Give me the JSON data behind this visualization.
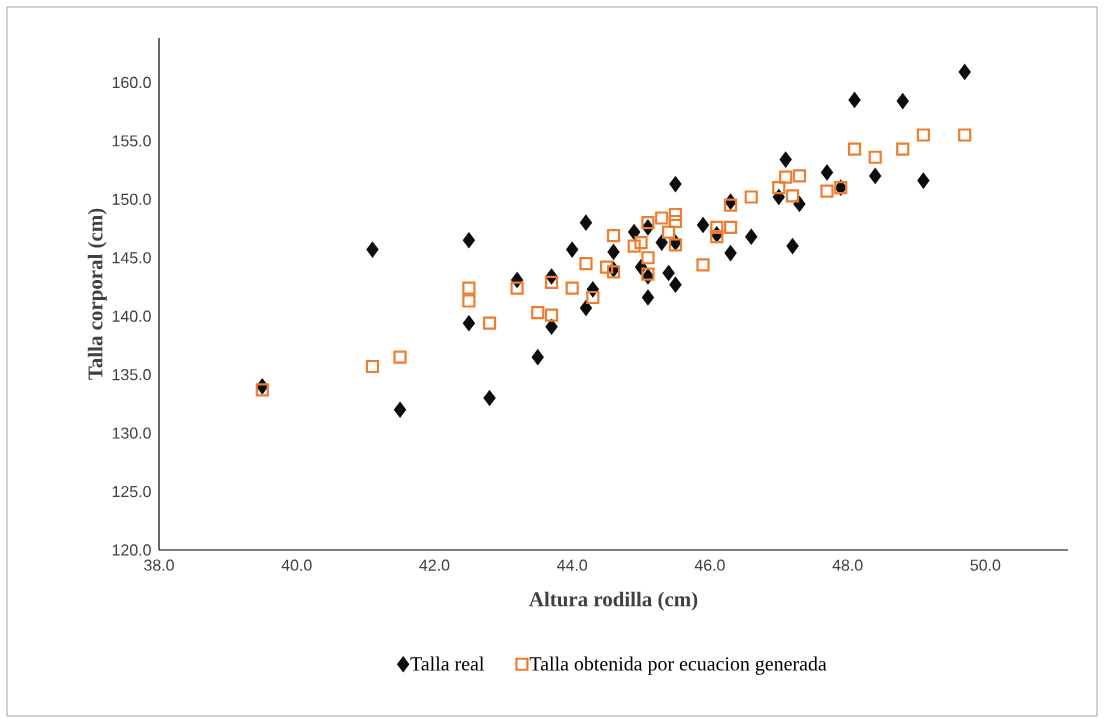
{
  "chart_data": {
    "type": "scatter",
    "xlabel": "Altura rodilla (cm)",
    "ylabel": "Talla corporal (cm)",
    "xlim": [
      38,
      51.2
    ],
    "ylim": [
      120,
      163.8
    ],
    "xticks": [
      {
        "value": 38,
        "label": "38.0"
      },
      {
        "value": 40,
        "label": "40.0"
      },
      {
        "value": 42,
        "label": "42.0"
      },
      {
        "value": 44,
        "label": "44.0"
      },
      {
        "value": 46,
        "label": "46.0"
      },
      {
        "value": 48,
        "label": "48.0"
      },
      {
        "value": 50,
        "label": "50.0"
      }
    ],
    "yticks": [
      {
        "value": 120,
        "label": "120.0"
      },
      {
        "value": 125,
        "label": "125.0"
      },
      {
        "value": 130,
        "label": "130.0"
      },
      {
        "value": 135,
        "label": "135.0"
      },
      {
        "value": 140,
        "label": "140.0"
      },
      {
        "value": 145,
        "label": "145.0"
      },
      {
        "value": 150,
        "label": "150.0"
      },
      {
        "value": 155,
        "label": "155.0"
      },
      {
        "value": 160,
        "label": "160.0"
      }
    ],
    "grid": false,
    "legend": "bottom",
    "series": [
      {
        "name": "Talla real",
        "color": "#0d0d0d",
        "marker": "diamond",
        "x": [
          39.5,
          41.1,
          41.5,
          42.5,
          42.5,
          42.8,
          43.2,
          43.5,
          43.7,
          43.7,
          44.0,
          44.2,
          44.2,
          44.3,
          44.6,
          44.6,
          44.9,
          45.0,
          45.1,
          45.1,
          45.1,
          45.3,
          45.4,
          45.5,
          45.5,
          45.5,
          45.9,
          46.1,
          46.3,
          46.3,
          46.6,
          47.0,
          47.1,
          47.2,
          47.3,
          47.7,
          47.9,
          48.1,
          48.4,
          48.8,
          49.1,
          49.7
        ],
        "values": [
          134.0,
          145.7,
          132.0,
          146.5,
          139.4,
          133.0,
          143.1,
          136.5,
          143.4,
          139.1,
          145.7,
          148.0,
          140.7,
          142.3,
          144.0,
          145.5,
          147.2,
          144.2,
          143.4,
          147.6,
          141.6,
          146.3,
          143.7,
          142.7,
          151.3,
          146.3,
          147.8,
          147.0,
          149.8,
          145.4,
          146.8,
          150.2,
          153.4,
          146.0,
          149.6,
          152.3,
          151.0,
          158.5,
          152.0,
          158.4,
          151.6,
          160.9
        ]
      },
      {
        "name": "Talla obtenida por ecuacion generada",
        "color": "#ed7d31",
        "marker": "square",
        "x": [
          39.5,
          41.1,
          41.5,
          42.5,
          42.5,
          42.8,
          43.2,
          43.5,
          43.7,
          43.7,
          44.0,
          44.2,
          44.3,
          44.6,
          44.5,
          44.6,
          44.9,
          45.0,
          45.1,
          45.1,
          45.1,
          45.3,
          45.4,
          45.5,
          45.5,
          45.5,
          45.9,
          46.1,
          46.1,
          46.3,
          46.3,
          46.6,
          47.0,
          47.1,
          47.2,
          47.3,
          47.7,
          47.9,
          48.1,
          48.4,
          48.8,
          49.1,
          49.7
        ],
        "values": [
          133.7,
          135.7,
          136.5,
          142.4,
          141.3,
          139.4,
          142.4,
          140.3,
          142.9,
          140.1,
          142.4,
          144.5,
          141.6,
          146.9,
          144.2,
          143.8,
          146.0,
          146.3,
          145.0,
          148.0,
          143.6,
          148.4,
          147.2,
          148.7,
          148.1,
          146.1,
          144.4,
          147.6,
          146.8,
          147.6,
          149.5,
          150.2,
          151.0,
          151.9,
          150.3,
          152.0,
          150.7,
          151.0,
          154.3,
          153.6,
          154.3,
          155.5,
          155.5
        ]
      }
    ]
  }
}
